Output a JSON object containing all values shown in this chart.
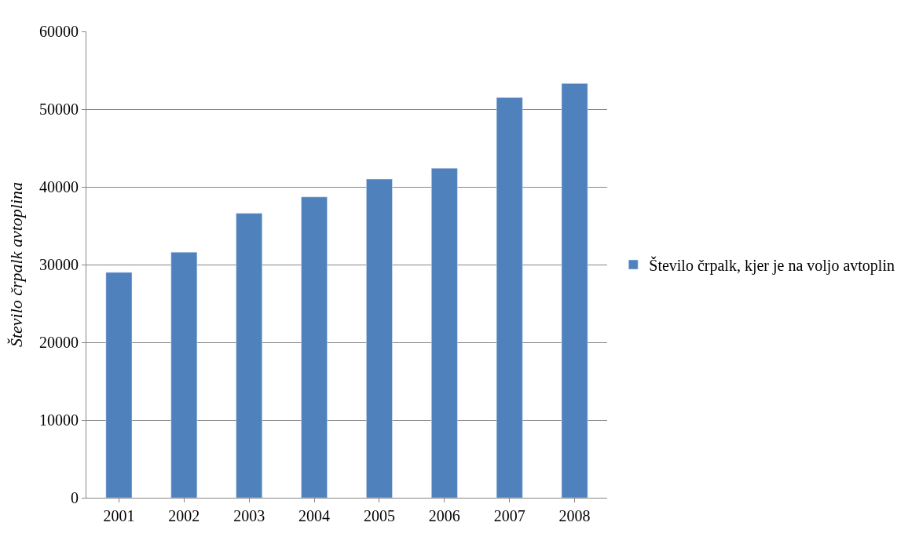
{
  "chart_data": {
    "type": "bar",
    "ylabel": "Število črpalk avtoplina",
    "categories": [
      "2001",
      "2002",
      "2003",
      "2004",
      "2005",
      "2006",
      "2007",
      "2008"
    ],
    "series": [
      {
        "name": "Število črpalk, kjer je na voljo avtoplin",
        "color": "#4f81bd",
        "values": [
          29000,
          31600,
          36600,
          38700,
          41000,
          42400,
          51500,
          53300
        ]
      }
    ],
    "ylim": [
      0,
      60000
    ],
    "yticks": [
      0,
      10000,
      20000,
      30000,
      40000,
      50000,
      60000
    ],
    "grid": "y",
    "legend": "right"
  }
}
